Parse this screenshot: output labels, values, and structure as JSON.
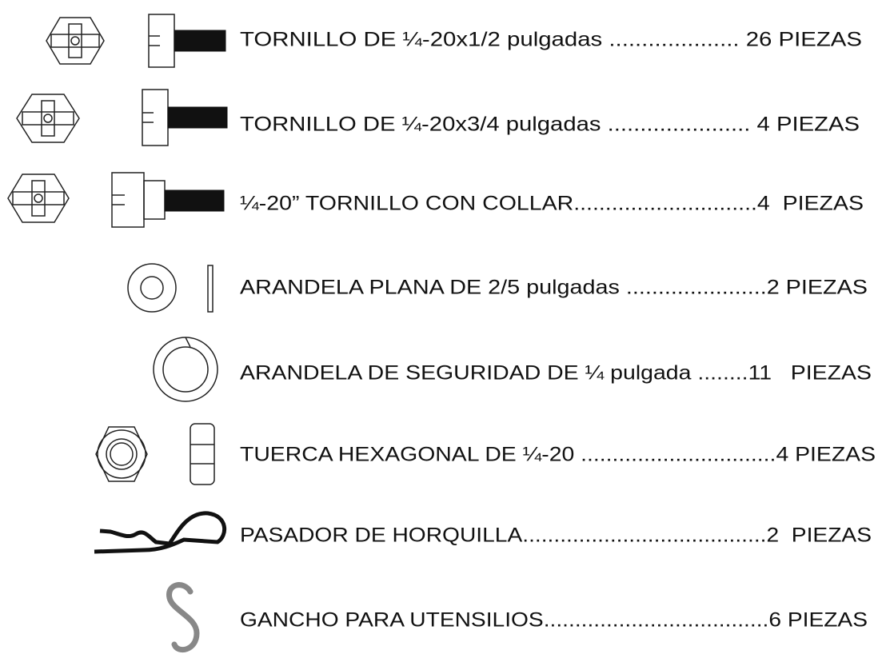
{
  "items": [
    "TORNILLO DE ¼-20x1/2 pulgadas .................... 26 PIEZAS",
    "TORNILLO DE ¼-20x3/4 pulgadas ...................... 4 PIEZAS",
    "¼-20” TORNILLO CON COLLAR.............................4  PIEZAS",
    "ARANDELA PLANA DE 2/5 pulgadas ......................2 PIEZAS",
    "ARANDELA DE SEGURIDAD DE ¼ pulgada ........11   PIEZAS",
    "TUERCA HEXAGONAL DE ¼-20 ...............................4 PIEZAS",
    "PASADOR DE HORQUILLA.......................................2  PIEZAS",
    "GANCHO PARA UTENSILIOS....................................6 PIEZAS"
  ]
}
